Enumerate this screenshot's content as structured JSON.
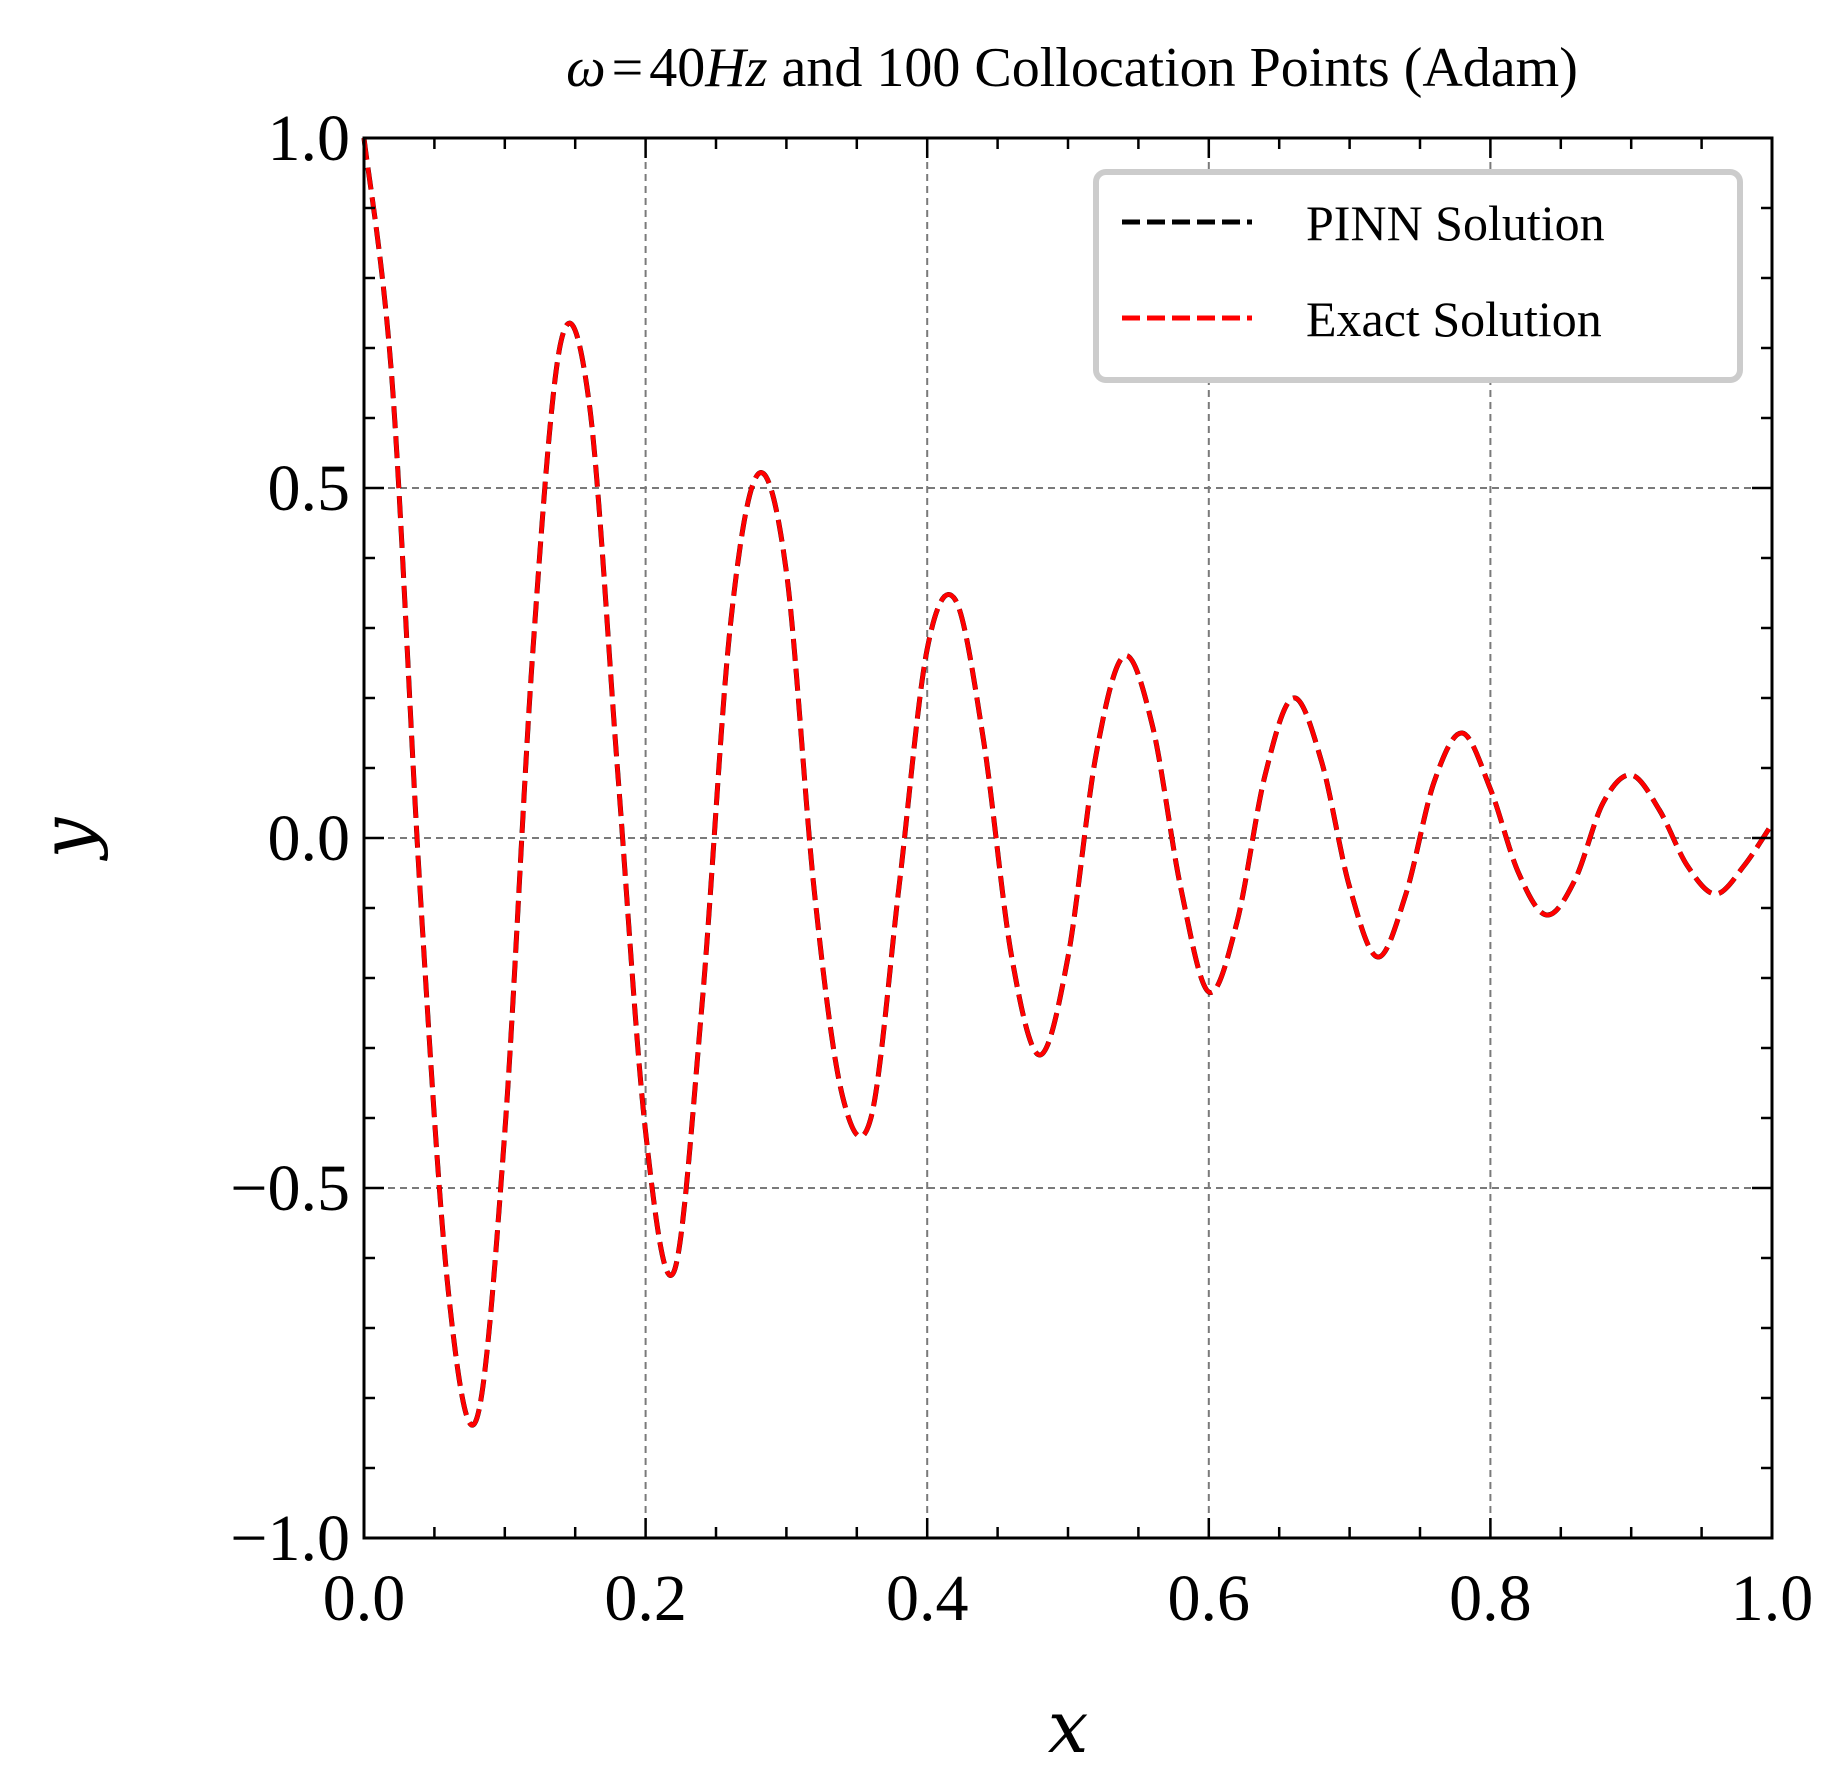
{
  "chart_data": {
    "type": "line",
    "title": "ω = 40Hz and 100 Collocation Points (Adam)",
    "title_parts": {
      "omega": "ω",
      "equals": "=",
      "value": "40",
      "unit": "Hz",
      "rest": " and 100 Collocation Points (Adam)"
    },
    "xlabel": "x",
    "ylabel": "y",
    "xlim": [
      0.0,
      1.0
    ],
    "ylim": [
      -1.0,
      1.0
    ],
    "xticks": [
      0.0,
      0.2,
      0.4,
      0.6,
      0.8,
      1.0
    ],
    "xtick_labels": [
      "0.0",
      "0.2",
      "0.4",
      "0.6",
      "0.8",
      "1.0"
    ],
    "yticks": [
      -1.0,
      -0.5,
      0.0,
      0.5,
      1.0
    ],
    "ytick_labels": [
      "−1.0",
      "−0.5",
      "0.0",
      "0.5",
      "1.0"
    ],
    "grid": true,
    "legend_position": "top-right",
    "x": [
      0.0,
      0.02,
      0.04,
      0.06,
      0.08,
      0.1,
      0.12,
      0.14,
      0.16,
      0.18,
      0.2,
      0.22,
      0.24,
      0.26,
      0.28,
      0.3,
      0.32,
      0.34,
      0.36,
      0.38,
      0.4,
      0.42,
      0.44,
      0.46,
      0.48,
      0.5,
      0.52,
      0.54,
      0.56,
      0.58,
      0.6,
      0.62,
      0.64,
      0.66,
      0.68,
      0.7,
      0.72,
      0.74,
      0.76,
      0.78,
      0.8,
      0.82,
      0.84,
      0.86,
      0.88,
      0.9,
      0.92,
      0.94,
      0.96,
      0.98,
      1.0
    ],
    "series": [
      {
        "name": "PINN Solution",
        "color": "#000000",
        "values": [
          1.0,
          0.65,
          -0.08,
          -0.65,
          -0.83,
          -0.42,
          0.27,
          0.71,
          0.62,
          0.1,
          -0.42,
          -0.62,
          -0.24,
          0.3,
          0.52,
          0.38,
          -0.08,
          -0.37,
          -0.4,
          -0.07,
          0.27,
          0.34,
          0.14,
          -0.17,
          -0.31,
          -0.17,
          0.12,
          0.26,
          0.16,
          -0.07,
          -0.22,
          -0.12,
          0.09,
          0.2,
          0.11,
          -0.07,
          -0.17,
          -0.08,
          0.08,
          0.15,
          0.07,
          -0.05,
          -0.11,
          -0.06,
          0.05,
          0.09,
          0.04,
          -0.04,
          -0.08,
          -0.04,
          0.02
        ]
      },
      {
        "name": "Exact Solution",
        "color": "#ff0000",
        "values": [
          1.0,
          0.65,
          -0.08,
          -0.65,
          -0.83,
          -0.42,
          0.27,
          0.71,
          0.62,
          0.1,
          -0.42,
          -0.62,
          -0.24,
          0.3,
          0.52,
          0.38,
          -0.08,
          -0.37,
          -0.4,
          -0.07,
          0.27,
          0.34,
          0.14,
          -0.17,
          -0.31,
          -0.17,
          0.12,
          0.26,
          0.16,
          -0.07,
          -0.22,
          -0.12,
          0.09,
          0.2,
          0.11,
          -0.07,
          -0.17,
          -0.08,
          0.08,
          0.15,
          0.07,
          -0.05,
          -0.11,
          -0.06,
          0.05,
          0.09,
          0.04,
          -0.04,
          -0.08,
          -0.04,
          0.02
        ]
      }
    ]
  }
}
